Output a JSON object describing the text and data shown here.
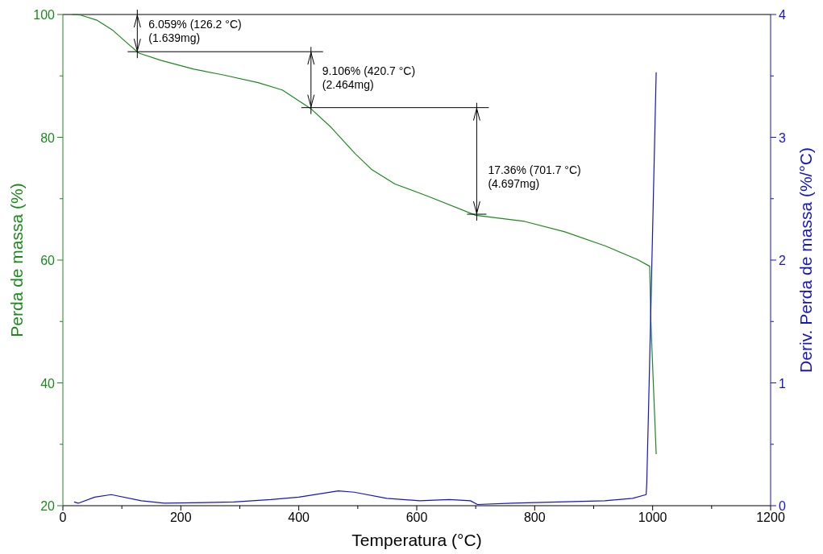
{
  "chart_data": {
    "type": "line",
    "xlabel": "Temperatura (°C)",
    "ylabel": "Perda de massa (%)",
    "y2label": "Deriv.  Perda de massa (%/°C)",
    "xlim": [
      0,
      1200
    ],
    "xticks": [
      0,
      {
        "value": 100,
        "label": null
      },
      200,
      {
        "value": 300,
        "label": null
      },
      400,
      {
        "value": 500,
        "label": null
      },
      600,
      {
        "value": 700,
        "label": null
      },
      800,
      {
        "value": 900,
        "label": null
      },
      1000,
      {
        "value": 1100,
        "label": null
      },
      1200
    ],
    "ylim": [
      20,
      100
    ],
    "yticks": [
      20,
      {
        "value": 30,
        "label": null
      },
      40,
      {
        "value": 50,
        "label": null
      },
      60,
      {
        "value": 70,
        "label": null
      },
      80,
      {
        "value": 90,
        "label": null
      },
      100
    ],
    "y2lim": [
      0,
      4
    ],
    "y2ticks": [
      0,
      {
        "value": 0.5,
        "label": null
      },
      1,
      {
        "value": 1.5,
        "label": null
      },
      2,
      {
        "value": 2.5,
        "label": null
      },
      3,
      {
        "value": 3.5,
        "label": null
      },
      4
    ],
    "grid": false,
    "marker": "none",
    "line_style": "solid",
    "series": [
      {
        "color": "#1a8a1a",
        "x": [
          16,
          30,
          57,
          85,
          112,
          129,
          167,
          222,
          270,
          331,
          372,
          420,
          455,
          495,
          523,
          563,
          619,
          700,
          783,
          851,
          920,
          974,
          995,
          997,
          1006
        ],
        "values": [
          100,
          99.9,
          99.1,
          97.4,
          95.1,
          93.7,
          92.5,
          91.1,
          90.2,
          88.9,
          87.7,
          84.7,
          81.6,
          77.4,
          74.8,
          72.4,
          70.4,
          67.3,
          66.3,
          64.6,
          62.3,
          60.1,
          59.0,
          49.9,
          28.4
        ]
      },
      {
        "color": "#1414c8",
        "axis": "y2",
        "x": [
          19,
          26,
          54,
          82,
          133,
          172,
          290,
          353,
          400,
          467,
          494,
          549,
          605,
          655,
          691,
          703,
          762,
          919,
          966,
          989,
          990,
          994,
          1006
        ],
        "values": [
          0.03,
          0.02,
          0.07,
          0.09,
          0.04,
          0.02,
          0.03,
          0.05,
          0.07,
          0.12,
          0.11,
          0.06,
          0.04,
          0.05,
          0.04,
          0.01,
          0.02,
          0.04,
          0.06,
          0.09,
          0.18,
          0.98,
          3.53
        ]
      }
    ],
    "annotations": [
      {
        "text": "6.059% (126.2 °C)\n(1.639mg)",
        "x": 126.2,
        "y": 93.94
      },
      {
        "text": "9.106% (420.7 °C)\n(2.464mg)",
        "x": 420.7,
        "y": 84.83
      },
      {
        "text": "17.36% (701.7 °C)\n(4.697mg)",
        "x": 701.7,
        "y": 67.47
      }
    ]
  }
}
